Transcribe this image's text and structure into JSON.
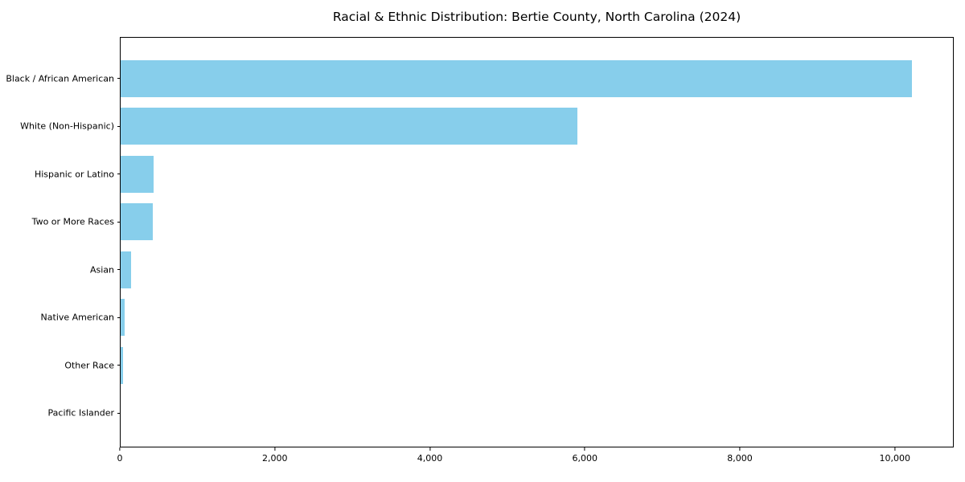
{
  "chart_data": {
    "type": "bar",
    "orientation": "horizontal",
    "title": "Racial & Ethnic Distribution: Bertie County, North Carolina (2024)",
    "categories": [
      "Black / African American",
      "White (Non-Hispanic)",
      "Hispanic or Latino",
      "Two or More Races",
      "Asian",
      "Native American",
      "Other Race",
      "Pacific Islander"
    ],
    "values": [
      10230,
      5900,
      430,
      420,
      130,
      50,
      30,
      0
    ],
    "xlabel": "",
    "ylabel": "",
    "xlim": [
      0,
      10760
    ],
    "x_ticks": [
      0,
      2000,
      4000,
      6000,
      8000,
      10000
    ],
    "x_tick_labels": [
      "0",
      "2,000",
      "4,000",
      "6,000",
      "8,000",
      "10,000"
    ],
    "bar_color": "#87CEEB",
    "frame_color": "#000000",
    "background_color": "#ffffff",
    "grid": false,
    "legend": null
  }
}
